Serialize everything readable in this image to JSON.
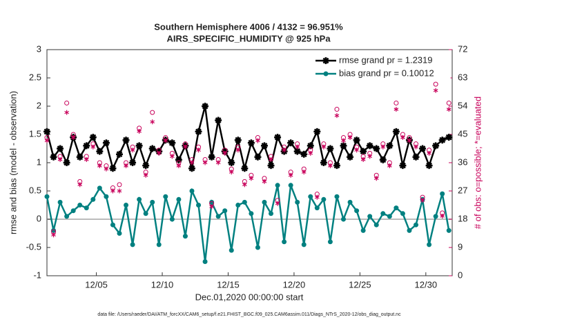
{
  "chart_data": {
    "type": "line",
    "title": "Southern Hemisphere 4006 / 4132 = 96.951%",
    "subtitle": "AIRS_SPECIFIC_HUMIDITY @ 925 hPa",
    "x_label": "Dec.01,2020 00:00:00 start",
    "y_label": "rmse and bias (model - observation)",
    "y2_label": "# of obs: o=possible; *=evaluated",
    "footnote": "data file: /Users/raeder/DAI/ATM_forcXX/CAM6_setup/f.e21.FHIST_BGC.f09_025.CAM6assim.011/Diags_NTrS_2020-12/obs_diag_output.nc",
    "x": [
      1.25,
      1.75,
      2.25,
      2.75,
      3.25,
      3.75,
      4.25,
      4.75,
      5.25,
      5.75,
      6.25,
      6.75,
      7.25,
      7.75,
      8.25,
      8.75,
      9.25,
      9.75,
      10.25,
      10.75,
      11.25,
      11.75,
      12.25,
      12.75,
      13.25,
      13.75,
      14.25,
      14.75,
      15.25,
      15.75,
      16.25,
      16.75,
      17.25,
      17.75,
      18.25,
      18.75,
      19.25,
      19.75,
      20.25,
      20.75,
      21.25,
      21.75,
      22.25,
      22.75,
      23.25,
      23.75,
      24.25,
      24.75,
      25.25,
      25.75,
      26.25,
      26.75,
      27.25,
      27.75,
      28.25,
      28.75,
      29.25,
      29.75,
      30.25,
      30.75,
      31.25,
      31.75
    ],
    "xlim": [
      1.25,
      32
    ],
    "xticks": [
      {
        "value": 5,
        "label": "12/05"
      },
      {
        "value": 10,
        "label": "12/10"
      },
      {
        "value": 15,
        "label": "12/15"
      },
      {
        "value": 20,
        "label": "12/20"
      },
      {
        "value": 25,
        "label": "12/25"
      },
      {
        "value": 30,
        "label": "12/30"
      }
    ],
    "ylim": [
      -1,
      3
    ],
    "yticks": [
      -1,
      -0.5,
      0,
      0.5,
      1,
      1.5,
      2,
      2.5,
      3
    ],
    "y2lim": [
      0,
      72
    ],
    "y2ticks": [
      0,
      9,
      18,
      27,
      36,
      45,
      54,
      63,
      72
    ],
    "y2_color": "#c8005a",
    "zero_line": true,
    "legend": "upper right",
    "series": [
      {
        "name": "rmse grand pr = 1.2319",
        "color": "#000000",
        "marker": "star",
        "values": [
          1.55,
          1.1,
          1.25,
          1.0,
          1.45,
          1.1,
          1.3,
          1.45,
          1.2,
          1.35,
          0.9,
          1.15,
          1.4,
          1.0,
          1.3,
          0.95,
          1.25,
          1.2,
          1.4,
          1.35,
          1.05,
          1.3,
          0.9,
          1.55,
          2.0,
          1.1,
          1.75,
          1.2,
          1.0,
          1.4,
          0.9,
          1.35,
          1.1,
          1.3,
          0.95,
          1.45,
          1.2,
          1.35,
          1.2,
          1.15,
          1.3,
          1.55,
          1.0,
          1.25,
          0.95,
          1.3,
          1.1,
          1.4,
          1.2,
          1.3,
          1.25,
          1.05,
          1.3,
          1.55,
          0.95,
          1.4,
          1.1,
          1.25,
          0.95,
          1.3,
          1.4,
          1.45
        ]
      },
      {
        "name": "bias grand pr = 0.10012",
        "color": "#008080",
        "marker": "circle",
        "values": [
          0.4,
          -0.2,
          0.3,
          0.05,
          0.15,
          0.25,
          0.2,
          0.35,
          0.55,
          0.4,
          -0.1,
          -0.25,
          0.25,
          -0.45,
          0.35,
          0.1,
          0.3,
          -0.45,
          0.4,
          0.0,
          0.35,
          -0.3,
          0.5,
          0.25,
          -0.75,
          0.3,
          0.05,
          0.15,
          -0.55,
          0.25,
          0.3,
          0.1,
          -0.5,
          0.3,
          0.1,
          0.6,
          -0.4,
          0.6,
          0.3,
          -0.45,
          0.4,
          0.2,
          0.35,
          -0.4,
          0.4,
          0.0,
          0.3,
          0.15,
          -0.2,
          0.05,
          -0.1,
          0.1,
          0.05,
          0.2,
          0.1,
          -0.2,
          -0.1,
          0.35,
          -0.45,
          0.05,
          0.45,
          -0.2
        ]
      },
      {
        "color": "#c8005a",
        "marker": "open-circle",
        "axis": "y2",
        "values": [
          44,
          14,
          38,
          55,
          45,
          30,
          38,
          42,
          36,
          35,
          28,
          29,
          36,
          41,
          47,
          33,
          52,
          40,
          44,
          39,
          36,
          42,
          37,
          41,
          37,
          23,
          37,
          40,
          34,
          41,
          30,
          32,
          44,
          31,
          38,
          24,
          41,
          33,
          42,
          34,
          40,
          26,
          42,
          36,
          53,
          44,
          45,
          41,
          38,
          39,
          32,
          42,
          36,
          55,
          45,
          44,
          42,
          25,
          40,
          61,
          20,
          55
        ]
      },
      {
        "color": "#c8005a",
        "marker": "asterisk",
        "axis": "y2",
        "values": [
          43,
          13,
          37,
          52,
          44,
          29,
          37,
          41,
          35,
          34,
          27,
          27,
          35,
          40,
          46,
          32,
          49,
          39,
          43,
          38,
          35,
          41,
          36,
          40,
          36,
          22,
          36,
          39,
          33,
          40,
          29,
          31,
          43,
          30,
          37,
          23,
          40,
          32,
          41,
          33,
          39,
          25,
          41,
          35,
          51,
          43,
          44,
          40,
          37,
          38,
          31,
          41,
          35,
          53,
          44,
          43,
          41,
          24,
          39,
          59,
          19,
          53
        ]
      }
    ]
  }
}
